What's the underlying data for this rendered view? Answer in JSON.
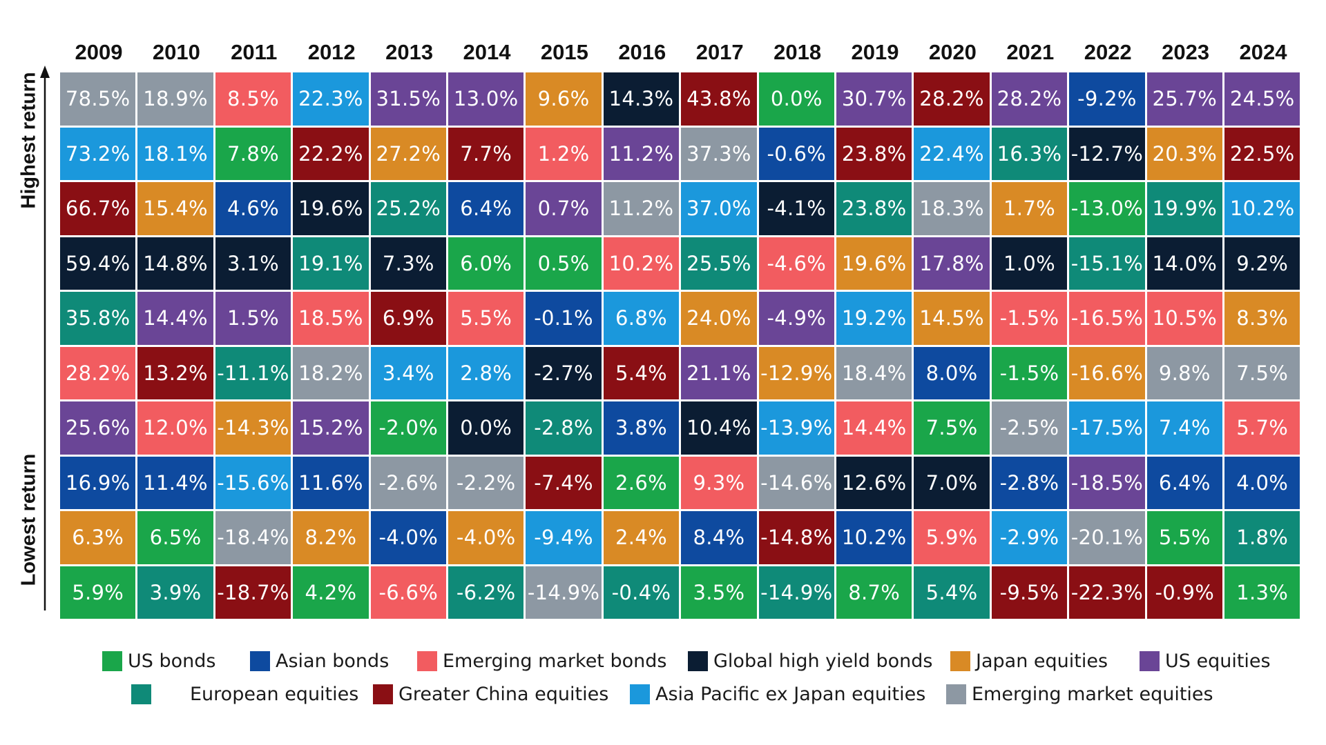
{
  "chart_data": {
    "type": "table",
    "title": "",
    "axis": {
      "top_label": "Highest return",
      "bottom_label": "Lowest return"
    },
    "years": [
      "2009",
      "2010",
      "2011",
      "2012",
      "2013",
      "2014",
      "2015",
      "2016",
      "2017",
      "2018",
      "2019",
      "2020",
      "2021",
      "2022",
      "2023",
      "2024"
    ],
    "categories": {
      "usb": {
        "name": "US bonds",
        "color": "#1aa64a"
      },
      "asb": {
        "name": "Asian bonds",
        "color": "#0e4a9f"
      },
      "emb": {
        "name": "Emerging market bonds",
        "color": "#f25c60"
      },
      "ghy": {
        "name": "Global high yield bonds",
        "color": "#0b1d33"
      },
      "jpe": {
        "name": "Japan equities",
        "color": "#d98a25"
      },
      "use": {
        "name": "US equities",
        "color": "#6a4596"
      },
      "eue": {
        "name": "European equities",
        "color": "#0f8a78"
      },
      "gce": {
        "name": "Greater China equities",
        "color": "#8a0f14"
      },
      "apj": {
        "name": "Asia Pacific ex Japan equities",
        "color": "#1b98dc"
      },
      "eme": {
        "name": "Emerging market equities",
        "color": "#8d98a3"
      }
    },
    "legend_rows": [
      [
        "usb",
        "asb",
        "emb",
        "ghy",
        "jpe",
        "use"
      ],
      [
        "eue",
        "gce",
        "apj",
        "eme"
      ]
    ],
    "columns": [
      [
        {
          "c": "eme",
          "v": "78.5%"
        },
        {
          "c": "apj",
          "v": "73.2%"
        },
        {
          "c": "gce",
          "v": "66.7%"
        },
        {
          "c": "ghy",
          "v": "59.4%"
        },
        {
          "c": "eue",
          "v": "35.8%"
        },
        {
          "c": "emb",
          "v": "28.2%"
        },
        {
          "c": "use",
          "v": "25.6%"
        },
        {
          "c": "asb",
          "v": "16.9%"
        },
        {
          "c": "jpe",
          "v": "6.3%"
        },
        {
          "c": "usb",
          "v": "5.9%"
        }
      ],
      [
        {
          "c": "eme",
          "v": "18.9%"
        },
        {
          "c": "apj",
          "v": "18.1%"
        },
        {
          "c": "jpe",
          "v": "15.4%"
        },
        {
          "c": "ghy",
          "v": "14.8%"
        },
        {
          "c": "use",
          "v": "14.4%"
        },
        {
          "c": "gce",
          "v": "13.2%"
        },
        {
          "c": "emb",
          "v": "12.0%"
        },
        {
          "c": "asb",
          "v": "11.4%"
        },
        {
          "c": "usb",
          "v": "6.5%"
        },
        {
          "c": "eue",
          "v": "3.9%"
        }
      ],
      [
        {
          "c": "emb",
          "v": "8.5%"
        },
        {
          "c": "usb",
          "v": "7.8%"
        },
        {
          "c": "asb",
          "v": "4.6%"
        },
        {
          "c": "ghy",
          "v": "3.1%"
        },
        {
          "c": "use",
          "v": "1.5%"
        },
        {
          "c": "eue",
          "v": "-11.1%"
        },
        {
          "c": "jpe",
          "v": "-14.3%"
        },
        {
          "c": "apj",
          "v": "-15.6%"
        },
        {
          "c": "eme",
          "v": "-18.4%"
        },
        {
          "c": "gce",
          "v": "-18.7%"
        }
      ],
      [
        {
          "c": "apj",
          "v": "22.3%"
        },
        {
          "c": "gce",
          "v": "22.2%"
        },
        {
          "c": "ghy",
          "v": "19.6%"
        },
        {
          "c": "eue",
          "v": "19.1%"
        },
        {
          "c": "emb",
          "v": "18.5%"
        },
        {
          "c": "eme",
          "v": "18.2%"
        },
        {
          "c": "use",
          "v": "15.2%"
        },
        {
          "c": "asb",
          "v": "11.6%"
        },
        {
          "c": "jpe",
          "v": "8.2%"
        },
        {
          "c": "usb",
          "v": "4.2%"
        }
      ],
      [
        {
          "c": "use",
          "v": "31.5%"
        },
        {
          "c": "jpe",
          "v": "27.2%"
        },
        {
          "c": "eue",
          "v": "25.2%"
        },
        {
          "c": "ghy",
          "v": "7.3%"
        },
        {
          "c": "gce",
          "v": "6.9%"
        },
        {
          "c": "apj",
          "v": "3.4%"
        },
        {
          "c": "usb",
          "v": "-2.0%"
        },
        {
          "c": "eme",
          "v": "-2.6%"
        },
        {
          "c": "asb",
          "v": "-4.0%"
        },
        {
          "c": "emb",
          "v": "-6.6%"
        }
      ],
      [
        {
          "c": "use",
          "v": "13.0%"
        },
        {
          "c": "gce",
          "v": "7.7%"
        },
        {
          "c": "asb",
          "v": "6.4%"
        },
        {
          "c": "usb",
          "v": "6.0%"
        },
        {
          "c": "emb",
          "v": "5.5%"
        },
        {
          "c": "apj",
          "v": "2.8%"
        },
        {
          "c": "ghy",
          "v": "0.0%"
        },
        {
          "c": "eme",
          "v": "-2.2%"
        },
        {
          "c": "jpe",
          "v": "-4.0%"
        },
        {
          "c": "eue",
          "v": "-6.2%"
        }
      ],
      [
        {
          "c": "jpe",
          "v": "9.6%"
        },
        {
          "c": "emb",
          "v": "1.2%"
        },
        {
          "c": "use",
          "v": "0.7%"
        },
        {
          "c": "usb",
          "v": "0.5%"
        },
        {
          "c": "asb",
          "v": "-0.1%"
        },
        {
          "c": "ghy",
          "v": "-2.7%"
        },
        {
          "c": "eue",
          "v": "-2.8%"
        },
        {
          "c": "gce",
          "v": "-7.4%"
        },
        {
          "c": "apj",
          "v": "-9.4%"
        },
        {
          "c": "eme",
          "v": "-14.9%"
        }
      ],
      [
        {
          "c": "ghy",
          "v": "14.3%"
        },
        {
          "c": "use",
          "v": "11.2%"
        },
        {
          "c": "eme",
          "v": "11.2%"
        },
        {
          "c": "emb",
          "v": "10.2%"
        },
        {
          "c": "apj",
          "v": "6.8%"
        },
        {
          "c": "gce",
          "v": "5.4%"
        },
        {
          "c": "asb",
          "v": "3.8%"
        },
        {
          "c": "usb",
          "v": "2.6%"
        },
        {
          "c": "jpe",
          "v": "2.4%"
        },
        {
          "c": "eue",
          "v": "-0.4%"
        }
      ],
      [
        {
          "c": "gce",
          "v": "43.8%"
        },
        {
          "c": "eme",
          "v": "37.3%"
        },
        {
          "c": "apj",
          "v": "37.0%"
        },
        {
          "c": "eue",
          "v": "25.5%"
        },
        {
          "c": "jpe",
          "v": "24.0%"
        },
        {
          "c": "use",
          "v": "21.1%"
        },
        {
          "c": "ghy",
          "v": "10.4%"
        },
        {
          "c": "emb",
          "v": "9.3%"
        },
        {
          "c": "asb",
          "v": "8.4%"
        },
        {
          "c": "usb",
          "v": "3.5%"
        }
      ],
      [
        {
          "c": "usb",
          "v": "0.0%"
        },
        {
          "c": "asb",
          "v": "-0.6%"
        },
        {
          "c": "ghy",
          "v": "-4.1%"
        },
        {
          "c": "emb",
          "v": "-4.6%"
        },
        {
          "c": "use",
          "v": "-4.9%"
        },
        {
          "c": "jpe",
          "v": "-12.9%"
        },
        {
          "c": "apj",
          "v": "-13.9%"
        },
        {
          "c": "eme",
          "v": "-14.6%"
        },
        {
          "c": "gce",
          "v": "-14.8%"
        },
        {
          "c": "eue",
          "v": "-14.9%"
        }
      ],
      [
        {
          "c": "use",
          "v": "30.7%"
        },
        {
          "c": "gce",
          "v": "23.8%"
        },
        {
          "c": "eue",
          "v": "23.8%"
        },
        {
          "c": "jpe",
          "v": "19.6%"
        },
        {
          "c": "apj",
          "v": "19.2%"
        },
        {
          "c": "eme",
          "v": "18.4%"
        },
        {
          "c": "emb",
          "v": "14.4%"
        },
        {
          "c": "ghy",
          "v": "12.6%"
        },
        {
          "c": "asb",
          "v": "10.2%"
        },
        {
          "c": "usb",
          "v": "8.7%"
        }
      ],
      [
        {
          "c": "gce",
          "v": "28.2%"
        },
        {
          "c": "apj",
          "v": "22.4%"
        },
        {
          "c": "eme",
          "v": "18.3%"
        },
        {
          "c": "use",
          "v": "17.8%"
        },
        {
          "c": "jpe",
          "v": "14.5%"
        },
        {
          "c": "asb",
          "v": "8.0%"
        },
        {
          "c": "usb",
          "v": "7.5%"
        },
        {
          "c": "ghy",
          "v": "7.0%"
        },
        {
          "c": "emb",
          "v": "5.9%"
        },
        {
          "c": "eue",
          "v": "5.4%"
        }
      ],
      [
        {
          "c": "use",
          "v": "28.2%"
        },
        {
          "c": "eue",
          "v": "16.3%"
        },
        {
          "c": "jpe",
          "v": "1.7%"
        },
        {
          "c": "ghy",
          "v": "1.0%"
        },
        {
          "c": "emb",
          "v": "-1.5%"
        },
        {
          "c": "usb",
          "v": "-1.5%"
        },
        {
          "c": "eme",
          "v": "-2.5%"
        },
        {
          "c": "asb",
          "v": "-2.8%"
        },
        {
          "c": "apj",
          "v": "-2.9%"
        },
        {
          "c": "gce",
          "v": "-9.5%"
        }
      ],
      [
        {
          "c": "asb",
          "v": "-9.2%"
        },
        {
          "c": "ghy",
          "v": "-12.7%"
        },
        {
          "c": "usb",
          "v": "-13.0%"
        },
        {
          "c": "eue",
          "v": "-15.1%"
        },
        {
          "c": "emb",
          "v": "-16.5%"
        },
        {
          "c": "jpe",
          "v": "-16.6%"
        },
        {
          "c": "apj",
          "v": "-17.5%"
        },
        {
          "c": "use",
          "v": "-18.5%"
        },
        {
          "c": "eme",
          "v": "-20.1%"
        },
        {
          "c": "gce",
          "v": "-22.3%"
        }
      ],
      [
        {
          "c": "use",
          "v": "25.7%"
        },
        {
          "c": "jpe",
          "v": "20.3%"
        },
        {
          "c": "eue",
          "v": "19.9%"
        },
        {
          "c": "ghy",
          "v": "14.0%"
        },
        {
          "c": "emb",
          "v": "10.5%"
        },
        {
          "c": "eme",
          "v": "9.8%"
        },
        {
          "c": "apj",
          "v": "7.4%"
        },
        {
          "c": "asb",
          "v": "6.4%"
        },
        {
          "c": "usb",
          "v": "5.5%"
        },
        {
          "c": "gce",
          "v": "-0.9%"
        }
      ],
      [
        {
          "c": "use",
          "v": "24.5%"
        },
        {
          "c": "gce",
          "v": "22.5%"
        },
        {
          "c": "apj",
          "v": "10.2%"
        },
        {
          "c": "ghy",
          "v": "9.2%"
        },
        {
          "c": "jpe",
          "v": "8.3%"
        },
        {
          "c": "eme",
          "v": "7.5%"
        },
        {
          "c": "emb",
          "v": "5.7%"
        },
        {
          "c": "asb",
          "v": "4.0%"
        },
        {
          "c": "eue",
          "v": "1.8%"
        },
        {
          "c": "usb",
          "v": "1.3%"
        }
      ]
    ]
  }
}
